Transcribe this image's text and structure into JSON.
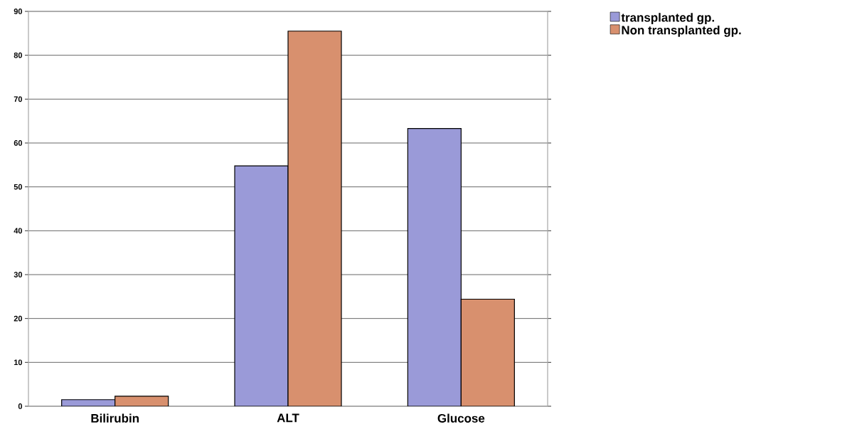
{
  "chart_data": {
    "type": "bar",
    "categories": [
      "Bilirubin",
      "ALT",
      "Glucose"
    ],
    "series": [
      {
        "name": "transplanted gp.",
        "color": "#9a9ad8",
        "values": [
          1.5,
          54.8,
          63.3
        ]
      },
      {
        "name": "Non transplanted gp.",
        "color": "#d8906e",
        "values": [
          2.3,
          85.5,
          24.4
        ]
      }
    ],
    "ylim": [
      0,
      90
    ],
    "yticks": [
      0,
      10,
      20,
      30,
      40,
      50,
      60,
      70,
      80,
      90
    ],
    "grid": "y",
    "legend": "top right"
  }
}
